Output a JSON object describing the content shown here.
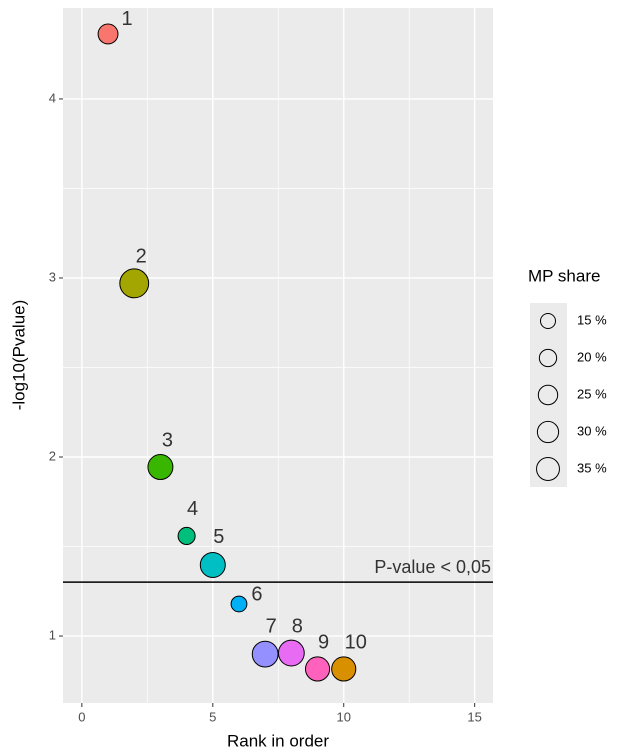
{
  "chart_data": {
    "type": "scatter",
    "x_label": "Rank in order",
    "y_label": "-log10(Pvalue)",
    "x": [
      1,
      2,
      3,
      4,
      5,
      6,
      7,
      8,
      9,
      10
    ],
    "values": [
      4.363,
      2.97,
      1.944,
      1.559,
      1.397,
      1.179,
      0.899,
      0.905,
      0.816,
      0.816
    ],
    "sizes": [
      19,
      40,
      30,
      14,
      30,
      12,
      32,
      32,
      28,
      28
    ],
    "point_labels": [
      "1",
      "2",
      "3",
      "4",
      "5",
      "6",
      "7",
      "8",
      "9",
      "10"
    ],
    "colors": [
      "#F8766D",
      "#A3A500",
      "#39B600",
      "#00BF7D",
      "#00BFC4",
      "#00B0F6",
      "#9590FF",
      "#E76BF3",
      "#FF62BC",
      "#D89000"
    ],
    "xlim": [
      -0.72,
      15.7
    ],
    "ylim": [
      0.626,
      4.508
    ],
    "xticks": [
      0,
      5,
      10,
      15
    ],
    "yticks": [
      1,
      2,
      3,
      4
    ],
    "x_minor_grid": [
      2.5,
      7.5,
      12.5
    ],
    "y_minor_grid": [
      1.5,
      2.5,
      3.5
    ],
    "grid": true,
    "threshold": {
      "value": 1.301,
      "label": "P-value < 0,05"
    },
    "size_legend": {
      "title": "MP share",
      "entries": [
        {
          "value": 15,
          "label": "15 %"
        },
        {
          "value": 20,
          "label": "20 %"
        },
        {
          "value": 25,
          "label": "25 %"
        },
        {
          "value": 30,
          "label": "30 %"
        },
        {
          "value": 35,
          "label": "35 %"
        }
      ]
    }
  }
}
